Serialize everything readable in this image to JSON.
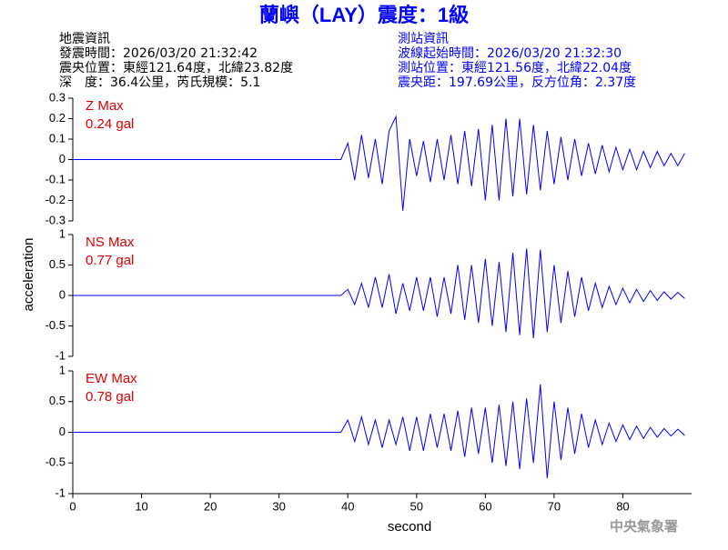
{
  "header": {
    "title": "蘭嶼（LAY）震度：1級",
    "left": [
      "地震資訊",
      "發震時間：2026/03/20 21:32:42",
      "震央位置：東經121.64度，北緯23.82度",
      "深　度：36.4公里，芮氏規模：5.1"
    ],
    "right": [
      "測站資訊",
      "波線起始時間：2026/03/20 21:32:30",
      "測站位置：東經121.56度，北緯22.04度",
      "震央距：197.69公里，反方位角：2.37度"
    ],
    "footer": "中央氣象署"
  },
  "chart_data": {
    "type": "line",
    "y_label": "acceleration",
    "x_label": "second",
    "xlim": [
      0,
      90
    ],
    "xticks": [
      0,
      10,
      20,
      30,
      40,
      50,
      60,
      70,
      80
    ],
    "x": [
      0,
      1,
      2,
      3,
      4,
      5,
      6,
      7,
      8,
      9,
      10,
      11,
      12,
      13,
      14,
      15,
      16,
      17,
      18,
      19,
      20,
      21,
      22,
      23,
      24,
      25,
      26,
      27,
      28,
      29,
      30,
      31,
      32,
      33,
      34,
      35,
      36,
      37,
      38,
      39,
      40,
      41,
      42,
      43,
      44,
      45,
      46,
      47,
      48,
      49,
      50,
      51,
      52,
      53,
      54,
      55,
      56,
      57,
      58,
      59,
      60,
      61,
      62,
      63,
      64,
      65,
      66,
      67,
      68,
      69,
      70,
      71,
      72,
      73,
      74,
      75,
      76,
      77,
      78,
      79,
      80,
      81,
      82,
      83,
      84,
      85,
      86,
      87,
      88,
      89
    ],
    "series": [
      {
        "name": "Z Max",
        "max_label": "0.24 gal",
        "color": "#0000ff",
        "ylim": [
          -0.3,
          0.3
        ],
        "yticks": [
          0.3,
          0.2,
          0.1,
          0,
          -0.1,
          -0.2,
          -0.3
        ],
        "values": [
          0,
          0,
          0,
          0,
          0,
          0,
          0,
          0,
          0,
          0,
          0,
          0,
          0,
          0,
          0,
          0,
          0,
          0,
          0,
          0,
          0,
          0,
          0,
          0,
          0,
          0,
          0,
          0,
          0,
          0,
          0,
          0,
          0,
          0,
          0,
          0,
          0,
          0,
          0,
          0,
          0.08,
          -0.1,
          0.12,
          -0.09,
          0.1,
          -0.12,
          0.14,
          0.21,
          -0.25,
          0.1,
          -0.08,
          0.09,
          -0.11,
          0.1,
          -0.1,
          0.12,
          -0.12,
          0.14,
          -0.13,
          0.15,
          -0.2,
          0.17,
          -0.2,
          0.2,
          -0.18,
          0.2,
          -0.17,
          0.17,
          -0.15,
          0.14,
          -0.12,
          0.11,
          -0.1,
          0.1,
          -0.08,
          0.08,
          -0.07,
          0.07,
          -0.06,
          0.06,
          -0.05,
          0.05,
          -0.05,
          0.04,
          -0.04,
          0.04,
          -0.03,
          0.03,
          -0.03,
          0.03
        ]
      },
      {
        "name": "NS Max",
        "max_label": "0.77 gal",
        "color": "#0000ff",
        "ylim": [
          -1,
          1
        ],
        "yticks": [
          1,
          0.5,
          0,
          -0.5,
          -1
        ],
        "values": [
          0,
          0,
          0,
          0,
          0,
          0,
          0,
          0,
          0,
          0,
          0,
          0,
          0,
          0,
          0,
          0,
          0,
          0,
          0,
          0,
          0,
          0,
          0,
          0,
          0,
          0,
          0,
          0,
          0,
          0,
          0,
          0,
          0,
          0,
          0,
          0,
          0,
          0,
          0,
          0,
          0.1,
          -0.15,
          0.2,
          -0.2,
          0.3,
          -0.2,
          0.35,
          -0.3,
          0.2,
          -0.25,
          0.3,
          -0.25,
          0.3,
          -0.35,
          0.3,
          -0.3,
          0.5,
          -0.4,
          0.5,
          -0.45,
          0.6,
          -0.5,
          0.55,
          -0.6,
          0.7,
          -0.65,
          0.77,
          -0.7,
          0.75,
          -0.6,
          0.5,
          -0.45,
          0.4,
          -0.35,
          0.3,
          -0.25,
          0.2,
          -0.2,
          0.15,
          -0.15,
          0.12,
          -0.12,
          0.1,
          -0.1,
          0.08,
          -0.08,
          0.06,
          -0.06,
          0.05,
          -0.05
        ]
      },
      {
        "name": "EW Max",
        "max_label": "0.78 gal",
        "color": "#0000ff",
        "ylim": [
          -1,
          1
        ],
        "yticks": [
          1,
          0.5,
          0,
          -0.5,
          -1
        ],
        "values": [
          0,
          0,
          0,
          0,
          0,
          0,
          0,
          0,
          0,
          0,
          0,
          0,
          0,
          0,
          0,
          0,
          0,
          0,
          0,
          0,
          0,
          0,
          0,
          0,
          0,
          0,
          0,
          0,
          0,
          0,
          0,
          0,
          0,
          0,
          0,
          0,
          0,
          0,
          0,
          0,
          0.2,
          -0.15,
          0.25,
          -0.2,
          0.2,
          -0.25,
          0.2,
          -0.2,
          0.25,
          -0.3,
          0.25,
          -0.3,
          0.3,
          -0.25,
          0.3,
          -0.3,
          0.35,
          -0.4,
          0.4,
          -0.35,
          0.4,
          -0.5,
          0.45,
          -0.55,
          0.5,
          -0.6,
          0.55,
          -0.5,
          0.78,
          -0.75,
          0.5,
          -0.45,
          0.4,
          -0.35,
          0.3,
          -0.25,
          0.2,
          -0.2,
          0.15,
          -0.15,
          0.12,
          -0.12,
          0.1,
          -0.1,
          0.08,
          -0.08,
          0.06,
          -0.06,
          0.05,
          -0.05
        ]
      }
    ]
  }
}
